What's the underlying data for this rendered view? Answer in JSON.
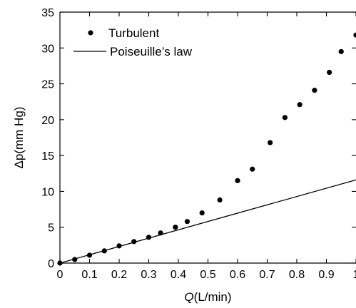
{
  "chart_data": {
    "type": "scatter",
    "xlabel": {
      "symbol": "Q",
      "unit": "(L/min)"
    },
    "ylabel": {
      "symbol": "Δp",
      "unit": "(mm Hg)"
    },
    "xlim": [
      0,
      1
    ],
    "ylim": [
      0,
      35
    ],
    "x_ticks": [
      0,
      0.1,
      0.2,
      0.3,
      0.4,
      0.5,
      0.6,
      0.7,
      0.8,
      0.9,
      1
    ],
    "x_tick_labels": [
      "0",
      "0.1",
      "0.2",
      "0.3",
      "0.4",
      "0.5",
      "0.6",
      "0.7",
      "0.8",
      "0.9",
      "1"
    ],
    "y_ticks": [
      0,
      5,
      10,
      15,
      20,
      25,
      30,
      35
    ],
    "y_tick_labels": [
      "0",
      "5",
      "10",
      "15",
      "20",
      "25",
      "30",
      "35"
    ],
    "grid": false,
    "legend_position": "top-left",
    "series": [
      {
        "name": "Turbulent",
        "kind": "scatter",
        "x": [
          0,
          0.05,
          0.1,
          0.15,
          0.2,
          0.25,
          0.3,
          0.34,
          0.39,
          0.43,
          0.48,
          0.54,
          0.6,
          0.65,
          0.71,
          0.76,
          0.81,
          0.86,
          0.91,
          0.95,
          1.0
        ],
        "y": [
          0,
          0.5,
          1.1,
          1.7,
          2.4,
          3.0,
          3.6,
          4.2,
          5.0,
          5.8,
          7.0,
          8.8,
          11.5,
          13.1,
          16.8,
          20.3,
          22.1,
          24.1,
          26.6,
          29.5,
          31.8
        ]
      },
      {
        "name": "Poiseuille’s law",
        "kind": "line",
        "x": [
          0,
          1.0
        ],
        "y": [
          0,
          11.6
        ]
      }
    ]
  }
}
